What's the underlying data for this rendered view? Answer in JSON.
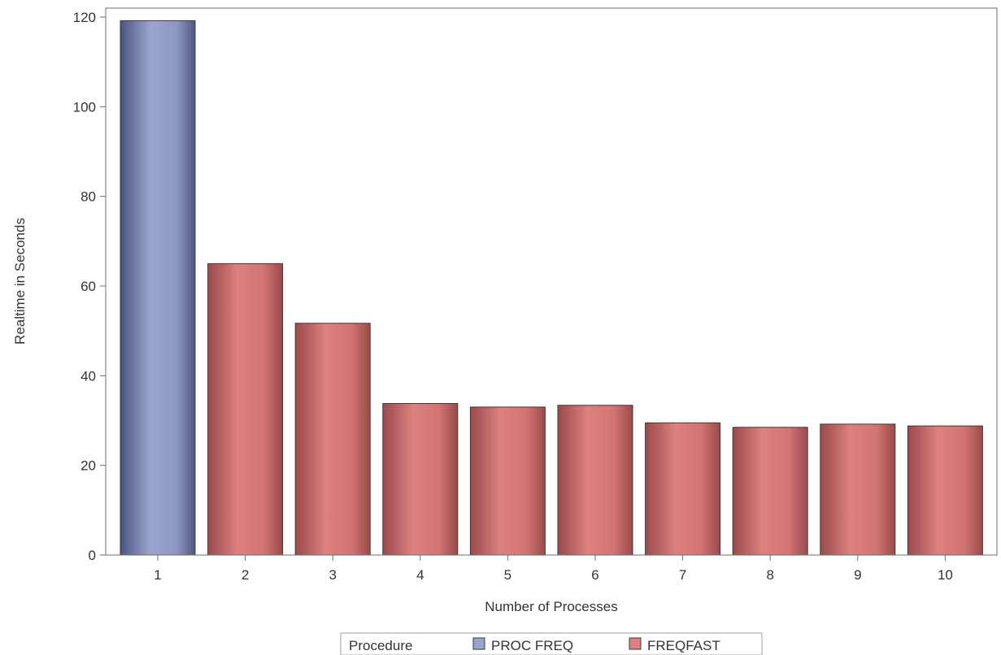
{
  "chart_data": {
    "type": "bar",
    "xlabel": "Number of Processes",
    "ylabel": "Realtime in Seconds",
    "categories": [
      "1",
      "2",
      "3",
      "4",
      "5",
      "6",
      "7",
      "8",
      "9",
      "10"
    ],
    "values": [
      119.2,
      65.0,
      51.7,
      33.8,
      33.0,
      33.4,
      29.5,
      28.5,
      29.2,
      28.8
    ],
    "groups": [
      "PROC FREQ",
      "FREQFAST",
      "FREQFAST",
      "FREQFAST",
      "FREQFAST",
      "FREQFAST",
      "FREQFAST",
      "FREQFAST",
      "FREQFAST",
      "FREQFAST"
    ],
    "ylim": [
      0,
      120
    ],
    "yticks": [
      0,
      20,
      40,
      60,
      80,
      100,
      120
    ],
    "grid": false,
    "legend": {
      "title": "Procedure",
      "placement": "bottom-center",
      "entries": [
        {
          "name": "PROC FREQ",
          "color": "#9aa4cc"
        },
        {
          "name": "FREQFAST",
          "color": "#dd8080"
        }
      ]
    }
  }
}
